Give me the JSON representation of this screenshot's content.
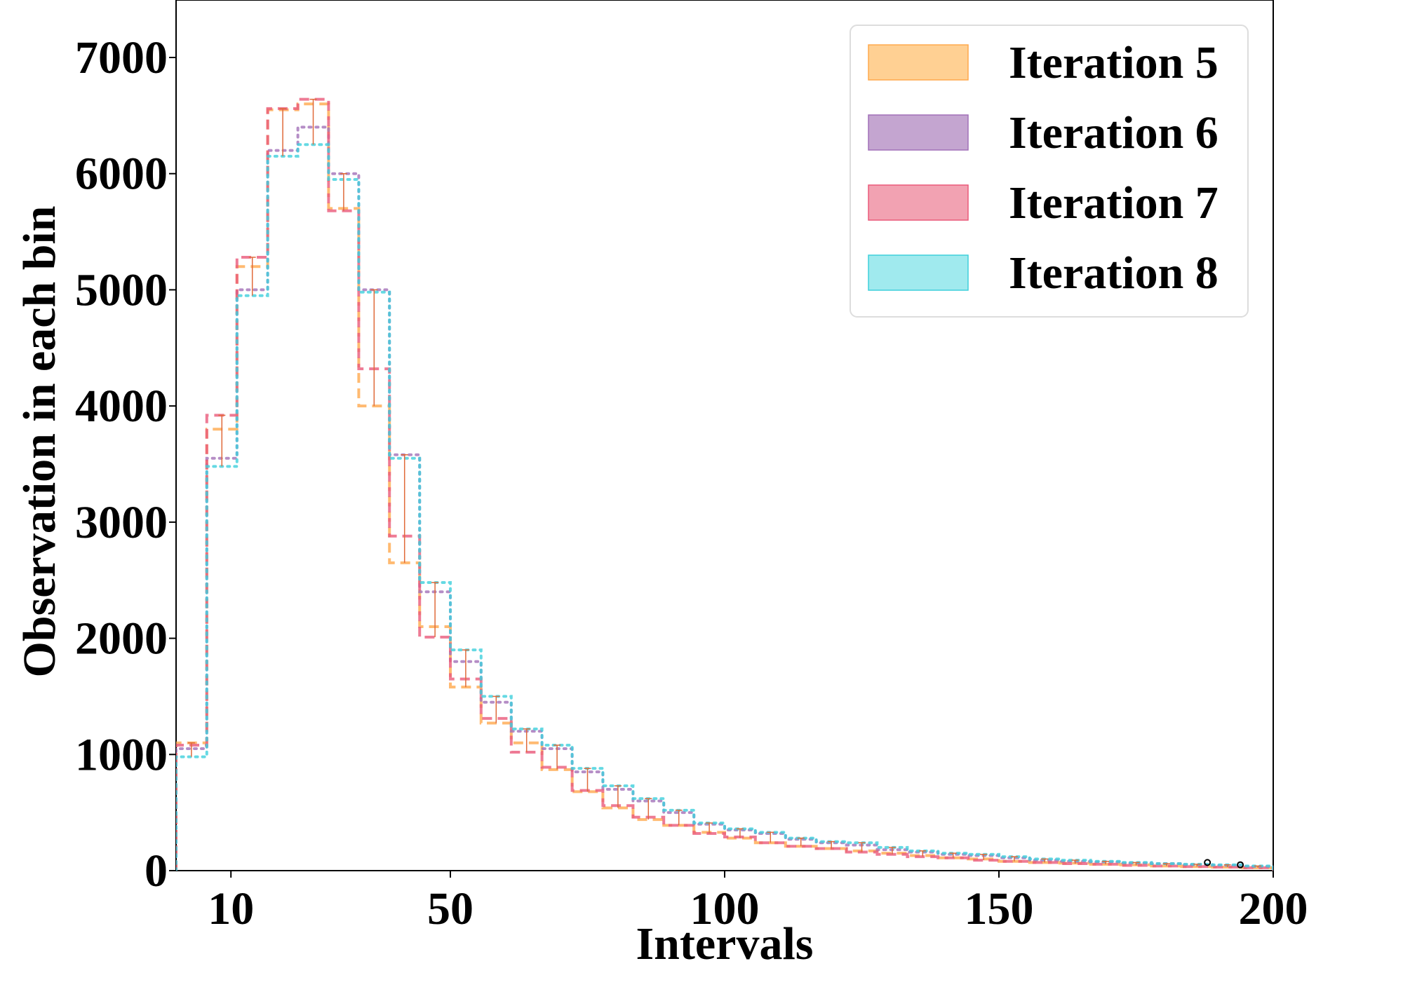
{
  "chart_data": {
    "type": "histogram",
    "xlabel": "Intervals",
    "ylabel": "Observation in each bin",
    "xlim": [
      0,
      200
    ],
    "ylim": [
      0,
      7500
    ],
    "x_ticks": [
      10,
      50,
      100,
      150,
      200
    ],
    "y_ticks": [
      0,
      1000,
      2000,
      3000,
      4000,
      5000,
      6000,
      7000
    ],
    "bin_edges": [
      0,
      5.6,
      11.1,
      16.7,
      22.2,
      27.8,
      33.3,
      38.9,
      44.4,
      50,
      55.6,
      61.1,
      66.7,
      72.2,
      77.8,
      83.3,
      88.9,
      94.4,
      100,
      105.6,
      111.1,
      116.7,
      122.2,
      127.8,
      133.3,
      138.9,
      144.4,
      150,
      155.6,
      161.1,
      166.7,
      172.2,
      177.8,
      183.3,
      188.9,
      194.4,
      200
    ],
    "legend_position": "top-right",
    "series": [
      {
        "name": "Iteration 5",
        "color": "#ffa94d",
        "fill": "#ffd093",
        "style": "dashed",
        "values": [
          1100,
          3800,
          5200,
          6550,
          6600,
          5700,
          4000,
          2650,
          2100,
          1580,
          1270,
          1100,
          870,
          680,
          540,
          440,
          390,
          330,
          280,
          240,
          210,
          190,
          170,
          150,
          130,
          110,
          100,
          80,
          70,
          65,
          55,
          50,
          40,
          35,
          30,
          25
        ]
      },
      {
        "name": "Iteration 6",
        "color": "#a270b8",
        "fill": "#c4a5d0",
        "style": "dotted",
        "values": [
          1050,
          3550,
          5000,
          6200,
          6400,
          6000,
          5000,
          3580,
          2400,
          1800,
          1450,
          1200,
          1050,
          850,
          700,
          600,
          500,
          400,
          350,
          320,
          270,
          240,
          220,
          180,
          160,
          140,
          130,
          110,
          90,
          80,
          75,
          65,
          60,
          50,
          45,
          35
        ]
      },
      {
        "name": "Iteration 7",
        "color": "#ea5a7a",
        "fill": "#f2a2b2",
        "style": "dashed",
        "values": [
          1080,
          3920,
          5280,
          6560,
          6640,
          5680,
          4320,
          2880,
          2010,
          1650,
          1310,
          1020,
          890,
          690,
          560,
          460,
          390,
          320,
          290,
          240,
          210,
          190,
          160,
          140,
          120,
          110,
          90,
          80,
          70,
          60,
          55,
          45,
          40,
          35,
          30,
          25
        ]
      },
      {
        "name": "Iteration 8",
        "color": "#3fd0dc",
        "fill": "#a0eaee",
        "style": "dotted",
        "values": [
          980,
          3480,
          4950,
          6150,
          6250,
          5950,
          4980,
          3550,
          2480,
          1900,
          1500,
          1220,
          1080,
          880,
          730,
          620,
          520,
          410,
          360,
          330,
          280,
          250,
          240,
          200,
          170,
          150,
          140,
          120,
          100,
          90,
          80,
          70,
          60,
          55,
          50,
          40
        ]
      }
    ]
  }
}
